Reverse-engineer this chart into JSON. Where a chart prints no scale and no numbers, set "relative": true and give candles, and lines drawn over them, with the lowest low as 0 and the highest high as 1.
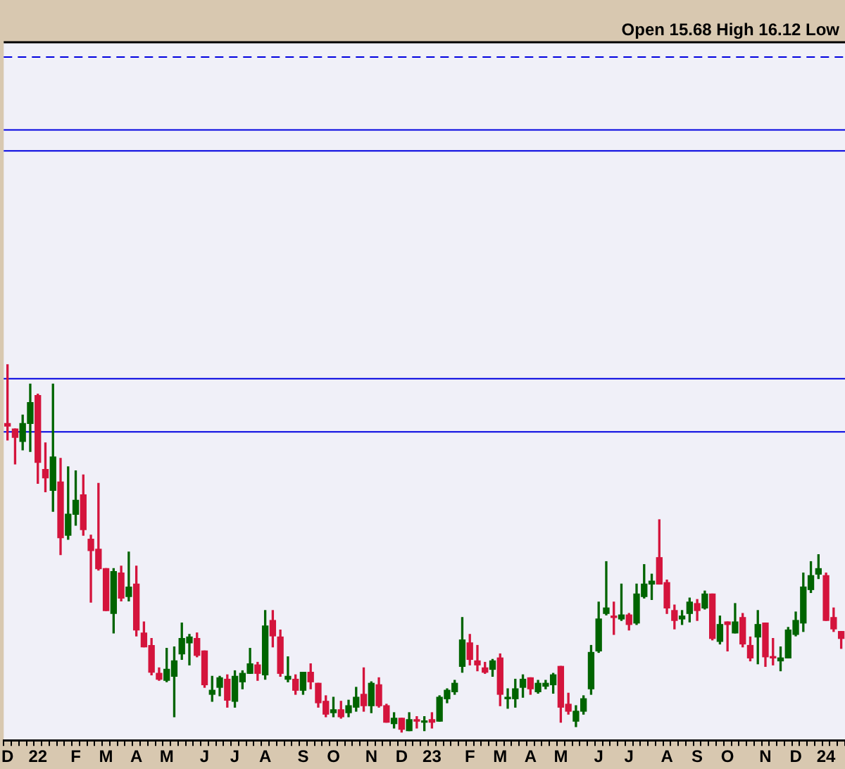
{
  "chart_data": {
    "type": "candlestick",
    "relative": true,
    "legend": false,
    "grid": false,
    "annotations": [
      "Open 15.68 High 16.12 Low"
    ],
    "categories": [
      "D",
      null,
      null,
      null,
      "22",
      null,
      null,
      null,
      null,
      "F",
      null,
      null,
      null,
      "M",
      null,
      null,
      null,
      "A",
      null,
      null,
      null,
      "M",
      null,
      null,
      null,
      null,
      "J",
      null,
      null,
      null,
      "J",
      null,
      null,
      null,
      "A",
      null,
      null,
      null,
      null,
      "S",
      null,
      null,
      null,
      "O",
      null,
      null,
      null,
      null,
      "N",
      null,
      null,
      null,
      "D",
      null,
      null,
      null,
      "23",
      null,
      null,
      null,
      null,
      "F",
      null,
      null,
      null,
      "M",
      null,
      null,
      null,
      "A",
      null,
      null,
      null,
      "M",
      null,
      null,
      null,
      null,
      "J",
      null,
      null,
      null,
      "J",
      null,
      null,
      null,
      null,
      "A",
      null,
      null,
      null,
      "S",
      null,
      null,
      null,
      "O",
      null,
      null,
      null,
      null,
      "N",
      null,
      null,
      null,
      "D",
      null,
      null,
      null,
      "24",
      null,
      null
    ],
    "ohlc": [
      [
        0.84,
        1.0,
        0.795,
        0.833
      ],
      [
        0.825,
        0.825,
        0.73,
        0.802
      ],
      [
        0.791,
        0.863,
        0.768,
        0.84
      ],
      [
        0.84,
        0.947,
        0.764,
        0.897
      ],
      [
        0.916,
        0.92,
        0.677,
        0.734
      ],
      [
        0.715,
        0.787,
        0.654,
        0.692
      ],
      [
        0.658,
        0.947,
        0.601,
        0.749
      ],
      [
        0.681,
        0.745,
        0.483,
        0.529
      ],
      [
        0.536,
        0.722,
        0.525,
        0.593
      ],
      [
        0.593,
        0.711,
        0.563,
        0.631
      ],
      [
        0.646,
        0.7,
        0.536,
        0.551
      ],
      [
        0.525,
        0.536,
        0.354,
        0.494
      ],
      [
        0.498,
        0.677,
        0.441,
        0.445
      ],
      [
        0.445,
        0.445,
        0.331,
        0.331
      ],
      [
        0.323,
        0.445,
        0.27,
        0.437
      ],
      [
        0.433,
        0.452,
        0.357,
        0.365
      ],
      [
        0.369,
        0.49,
        0.357,
        0.395
      ],
      [
        0.403,
        0.452,
        0.262,
        0.278
      ],
      [
        0.27,
        0.3,
        0.232,
        0.232
      ],
      [
        0.236,
        0.255,
        0.156,
        0.163
      ],
      [
        0.16,
        0.175,
        0.141,
        0.144
      ],
      [
        0.141,
        0.228,
        0.137,
        0.171
      ],
      [
        0.152,
        0.232,
        0.042,
        0.194
      ],
      [
        0.213,
        0.297,
        0.198,
        0.255
      ],
      [
        0.243,
        0.266,
        0.183,
        0.259
      ],
      [
        0.255,
        0.27,
        0.205,
        0.209
      ],
      [
        0.221,
        0.221,
        0.122,
        0.129
      ],
      [
        0.103,
        0.152,
        0.084,
        0.114
      ],
      [
        0.122,
        0.152,
        0.099,
        0.148
      ],
      [
        0.144,
        0.156,
        0.068,
        0.087
      ],
      [
        0.084,
        0.167,
        0.068,
        0.152
      ],
      [
        0.137,
        0.167,
        0.118,
        0.16
      ],
      [
        0.16,
        0.228,
        0.16,
        0.186
      ],
      [
        0.183,
        0.19,
        0.141,
        0.16
      ],
      [
        0.156,
        0.331,
        0.144,
        0.289
      ],
      [
        0.304,
        0.331,
        0.232,
        0.262
      ],
      [
        0.259,
        0.278,
        0.152,
        0.16
      ],
      [
        0.144,
        0.205,
        0.137,
        0.152
      ],
      [
        0.144,
        0.156,
        0.103,
        0.114
      ],
      [
        0.114,
        0.163,
        0.103,
        0.163
      ],
      [
        0.163,
        0.186,
        0.118,
        0.137
      ],
      [
        0.133,
        0.133,
        0.068,
        0.08
      ],
      [
        0.084,
        0.099,
        0.042,
        0.049
      ],
      [
        0.053,
        0.095,
        0.042,
        0.061
      ],
      [
        0.061,
        0.084,
        0.038,
        0.042
      ],
      [
        0.053,
        0.087,
        0.042,
        0.072
      ],
      [
        0.068,
        0.122,
        0.057,
        0.095
      ],
      [
        0.103,
        0.175,
        0.057,
        0.072
      ],
      [
        0.072,
        0.137,
        0.053,
        0.133
      ],
      [
        0.129,
        0.148,
        0.068,
        0.072
      ],
      [
        0.072,
        0.076,
        0.027,
        0.027
      ],
      [
        0.023,
        0.053,
        0.011,
        0.038
      ],
      [
        0.038,
        0.038,
        0.0,
        0.008
      ],
      [
        0.004,
        0.053,
        0.004,
        0.034
      ],
      [
        0.034,
        0.042,
        0.011,
        0.03
      ],
      [
        0.027,
        0.042,
        0.004,
        0.03
      ],
      [
        0.034,
        0.053,
        0.011,
        0.027
      ],
      [
        0.03,
        0.099,
        0.03,
        0.095
      ],
      [
        0.091,
        0.118,
        0.08,
        0.114
      ],
      [
        0.11,
        0.141,
        0.103,
        0.133
      ],
      [
        0.179,
        0.312,
        0.163,
        0.251
      ],
      [
        0.243,
        0.266,
        0.183,
        0.198
      ],
      [
        0.194,
        0.236,
        0.167,
        0.183
      ],
      [
        0.175,
        0.19,
        0.16,
        0.163
      ],
      [
        0.171,
        0.198,
        0.152,
        0.194
      ],
      [
        0.202,
        0.213,
        0.072,
        0.103
      ],
      [
        0.091,
        0.118,
        0.065,
        0.095
      ],
      [
        0.091,
        0.144,
        0.068,
        0.118
      ],
      [
        0.122,
        0.156,
        0.095,
        0.144
      ],
      [
        0.148,
        0.148,
        0.103,
        0.118
      ],
      [
        0.11,
        0.141,
        0.106,
        0.133
      ],
      [
        0.125,
        0.141,
        0.118,
        0.133
      ],
      [
        0.129,
        0.16,
        0.106,
        0.156
      ],
      [
        0.179,
        0.179,
        0.027,
        0.068
      ],
      [
        0.076,
        0.106,
        0.049,
        0.057
      ],
      [
        0.03,
        0.072,
        0.015,
        0.057
      ],
      [
        0.057,
        0.099,
        0.049,
        0.091
      ],
      [
        0.118,
        0.236,
        0.103,
        0.217
      ],
      [
        0.221,
        0.354,
        0.217,
        0.308
      ],
      [
        0.323,
        0.464,
        0.319,
        0.338
      ],
      [
        0.316,
        0.354,
        0.266,
        0.312
      ],
      [
        0.308,
        0.403,
        0.304,
        0.319
      ],
      [
        0.319,
        0.323,
        0.278,
        0.293
      ],
      [
        0.297,
        0.403,
        0.293,
        0.376
      ],
      [
        0.369,
        0.456,
        0.365,
        0.403
      ],
      [
        0.403,
        0.43,
        0.361,
        0.411
      ],
      [
        0.475,
        0.578,
        0.403,
        0.403
      ],
      [
        0.407,
        0.414,
        0.323,
        0.338
      ],
      [
        0.331,
        0.346,
        0.281,
        0.304
      ],
      [
        0.308,
        0.331,
        0.293,
        0.316
      ],
      [
        0.323,
        0.365,
        0.3,
        0.354
      ],
      [
        0.35,
        0.361,
        0.304,
        0.331
      ],
      [
        0.338,
        0.384,
        0.335,
        0.376
      ],
      [
        0.376,
        0.376,
        0.251,
        0.255
      ],
      [
        0.247,
        0.316,
        0.24,
        0.293
      ],
      [
        0.3,
        0.3,
        0.221,
        0.293
      ],
      [
        0.27,
        0.35,
        0.27,
        0.3
      ],
      [
        0.312,
        0.323,
        0.232,
        0.24
      ],
      [
        0.236,
        0.259,
        0.194,
        0.202
      ],
      [
        0.259,
        0.331,
        0.186,
        0.293
      ],
      [
        0.297,
        0.297,
        0.179,
        0.205
      ],
      [
        0.205,
        0.255,
        0.183,
        0.202
      ],
      [
        0.194,
        0.232,
        0.167,
        0.202
      ],
      [
        0.202,
        0.285,
        0.202,
        0.278
      ],
      [
        0.266,
        0.327,
        0.262,
        0.304
      ],
      [
        0.297,
        0.433,
        0.274,
        0.395
      ],
      [
        0.388,
        0.464,
        0.38,
        0.426
      ],
      [
        0.43,
        0.483,
        0.418,
        0.445
      ],
      [
        0.426,
        0.433,
        0.304,
        0.304
      ],
      [
        0.312,
        0.338,
        0.274,
        0.281
      ],
      [
        0.274,
        0.274,
        0.228,
        0.255
      ]
    ],
    "colors": [
      "#d4143c",
      "#d4143c",
      "#006400",
      "#006400",
      "#d4143c",
      "#d4143c",
      "#006400",
      "#d4143c",
      "#006400",
      "#006400",
      "#d4143c",
      "#d4143c",
      "#d4143c",
      "#d4143c",
      "#006400",
      "#d4143c",
      "#006400",
      "#d4143c",
      "#d4143c",
      "#d4143c",
      "#d4143c",
      "#006400",
      "#006400",
      "#006400",
      "#006400",
      "#d4143c",
      "#d4143c",
      "#006400",
      "#006400",
      "#d4143c",
      "#006400",
      "#006400",
      "#006400",
      "#d4143c",
      "#006400",
      "#d4143c",
      "#d4143c",
      "#006400",
      "#d4143c",
      "#006400",
      "#d4143c",
      "#d4143c",
      "#d4143c",
      "#006400",
      "#d4143c",
      "#006400",
      "#006400",
      "#d4143c",
      "#006400",
      "#d4143c",
      "#d4143c",
      "#006400",
      "#d4143c",
      "#006400",
      "#d4143c",
      "#006400",
      "#d4143c",
      "#006400",
      "#006400",
      "#006400",
      "#006400",
      "#d4143c",
      "#d4143c",
      "#d4143c",
      "#006400",
      "#d4143c",
      "#006400",
      "#006400",
      "#006400",
      "#d4143c",
      "#006400",
      "#006400",
      "#006400",
      "#d4143c",
      "#d4143c",
      "#006400",
      "#006400",
      "#006400",
      "#006400",
      "#006400",
      "#d4143c",
      "#006400",
      "#d4143c",
      "#006400",
      "#006400",
      "#006400",
      "#d4143c",
      "#d4143c",
      "#d4143c",
      "#006400",
      "#006400",
      "#d4143c",
      "#006400",
      "#d4143c",
      "#006400",
      "#d4143c",
      "#006400",
      "#d4143c",
      "#d4143c",
      "#006400",
      "#d4143c",
      "#d4143c",
      "#006400",
      "#006400",
      "#006400",
      "#006400",
      "#006400",
      "#006400",
      "#d4143c",
      "#d4143c",
      "#d4143c"
    ],
    "ref_lines": [
      {
        "axis": "y",
        "value": 1.837,
        "color": "#0000e0",
        "line_style": "dashed"
      },
      {
        "axis": "y",
        "value": 1.639,
        "color": "#0000e0"
      },
      {
        "axis": "y",
        "value": 1.582,
        "color": "#0000e0"
      },
      {
        "axis": "y",
        "value": 0.962,
        "color": "#0000e0"
      },
      {
        "axis": "y",
        "value": 0.817,
        "color": "#0000e0"
      }
    ]
  }
}
